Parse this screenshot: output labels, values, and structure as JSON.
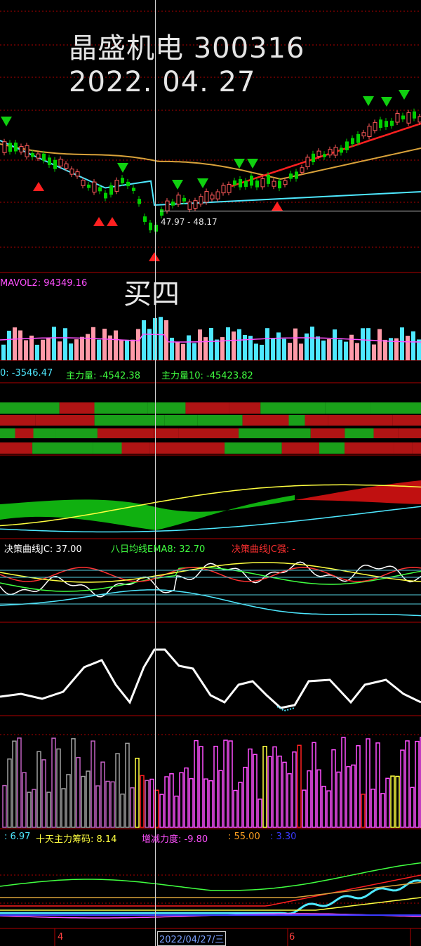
{
  "title": {
    "name_code": "晶盛机电 300316",
    "date": "2022. 04. 27"
  },
  "signal_label": "买四",
  "price_panel": {
    "range_readout": "47.97 - 48.17",
    "sell_markers": [
      "1",
      "2",
      "3",
      "1",
      "7",
      "8",
      "9",
      "1",
      "1",
      "2",
      "3",
      "4",
      "5",
      "2",
      "6",
      "7",
      "8",
      "9",
      "1",
      "4",
      "6"
    ],
    "buy_markers": [
      "1",
      "2",
      "3",
      "1",
      "1"
    ]
  },
  "volume_panel": {
    "mavol2_label": "MAVOL2: 94349.16"
  },
  "capital_panel": {
    "value1": "0: -3546.47",
    "main_force": "主力量: -4542.38",
    "main_force10": "主力量10: -45423.82"
  },
  "decision_panel": {
    "jc": "决策曲线JC: 37.00",
    "ema8": "八日均线EMA8: 32.70",
    "jc_strong": "决策曲线JC强: -"
  },
  "chip_panel": {
    "v1": ": 6.97",
    "ten_day": "十天主力筹码: 8.14",
    "delta_force": "增减力度: -9.80",
    "v55": ": 55.00",
    "v330": ": 3.30"
  },
  "time_axis": {
    "label_4": "4",
    "cursor_date": "2022/04/27/三",
    "label_6": "6"
  },
  "colors": {
    "up": "#ff5a5a",
    "down": "#00d000",
    "cyan": "#4ee8ff",
    "yellow": "#ffff40",
    "magenta": "#ff50ff",
    "gold": "#d9a23a",
    "bg": "#000000",
    "grid": "#b00000"
  }
}
